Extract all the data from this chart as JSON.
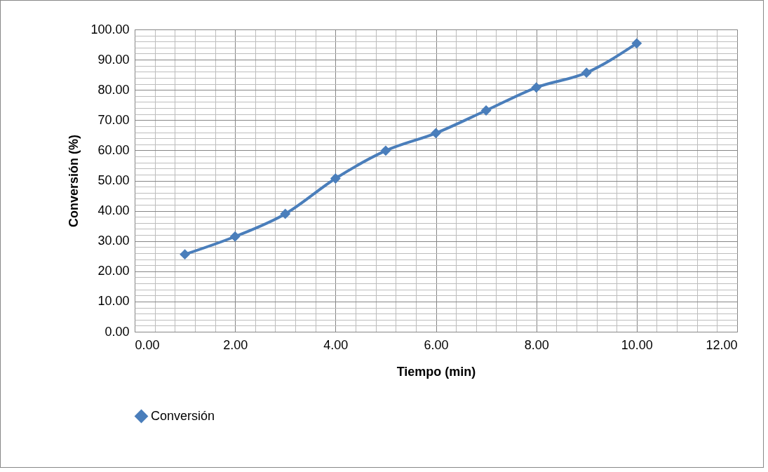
{
  "chart_data": {
    "type": "line",
    "xlabel": "Tiempo (min)",
    "ylabel": "Conversión (%)",
    "x": [
      1,
      2,
      3,
      4,
      5,
      6,
      7,
      8,
      9,
      10
    ],
    "series": [
      {
        "name": "Conversión",
        "color": "#4a7ebb",
        "values": [
          25.6,
          31.5,
          39.0,
          50.7,
          59.9,
          65.7,
          73.2,
          80.8,
          85.7,
          95.4
        ]
      }
    ],
    "xlim": [
      0,
      12
    ],
    "xticks": [
      {
        "value": 0,
        "label": "0.00"
      },
      {
        "value": 2,
        "label": "2.00"
      },
      {
        "value": 4,
        "label": "4.00"
      },
      {
        "value": 6,
        "label": "6.00"
      },
      {
        "value": 8,
        "label": "8.00"
      },
      {
        "value": 10,
        "label": "10.00"
      },
      {
        "value": 12,
        "label": "12.00"
      }
    ],
    "ylim": [
      0,
      100
    ],
    "yticks": [
      {
        "value": 0,
        "label": "0.00"
      },
      {
        "value": 10,
        "label": "10.00"
      },
      {
        "value": 20,
        "label": "20.00"
      },
      {
        "value": 30,
        "label": "30.00"
      },
      {
        "value": 40,
        "label": "40.00"
      },
      {
        "value": 50,
        "label": "50.00"
      },
      {
        "value": 60,
        "label": "60.00"
      },
      {
        "value": 70,
        "label": "70.00"
      },
      {
        "value": 80,
        "label": "80.00"
      },
      {
        "value": 90,
        "label": "90.00"
      },
      {
        "value": 100,
        "label": "100.00"
      }
    ],
    "grid": true,
    "legend": "bottom",
    "marker": "diamond",
    "line_style": "solid"
  }
}
